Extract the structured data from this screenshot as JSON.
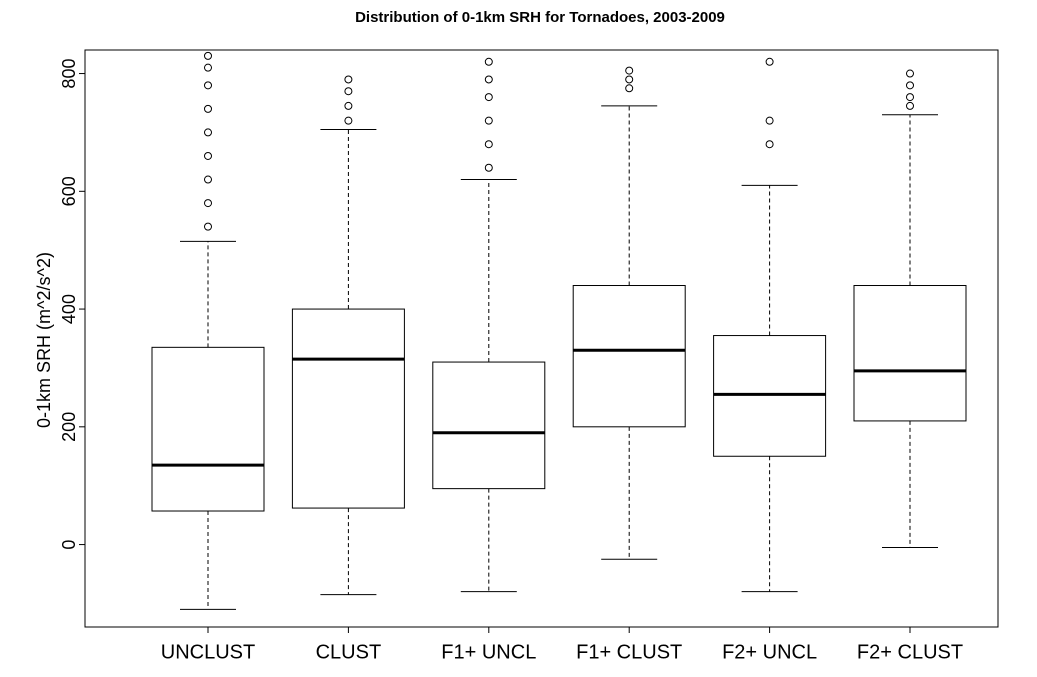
{
  "chart_data": {
    "type": "box",
    "title": "Distribution of 0-1km SRH for Tornadoes, 2003-2009",
    "y_label": "0-1km SRH (m^2/s^2)",
    "categories": [
      "UNCLUST",
      "CLUST",
      "F1+ UNCL",
      "F1+ CLUST",
      "F2+ UNCL",
      "F2+ CLUST"
    ],
    "boxes": [
      {
        "min": -110,
        "q1": 57,
        "median": 135,
        "q3": 335,
        "max": 515,
        "outliers": [
          540,
          580,
          620,
          660,
          700,
          740,
          780,
          810,
          830
        ]
      },
      {
        "min": -85,
        "q1": 62,
        "median": 315,
        "q3": 400,
        "max": 705,
        "outliers": [
          720,
          745,
          770,
          790
        ]
      },
      {
        "min": -80,
        "q1": 95,
        "median": 190,
        "q3": 310,
        "max": 620,
        "outliers": [
          640,
          680,
          720,
          760,
          790,
          820
        ]
      },
      {
        "min": -25,
        "q1": 200,
        "median": 330,
        "q3": 440,
        "max": 745,
        "outliers": [
          775,
          790,
          805
        ]
      },
      {
        "min": -80,
        "q1": 150,
        "median": 255,
        "q3": 355,
        "max": 610,
        "outliers": [
          680,
          720,
          820
        ]
      },
      {
        "min": -5,
        "q1": 210,
        "median": 295,
        "q3": 440,
        "max": 730,
        "outliers": [
          745,
          760,
          780,
          800
        ]
      }
    ],
    "ylim": [
      -140,
      840
    ],
    "yticks": [
      0,
      200,
      400,
      600,
      800
    ],
    "color": "#000000",
    "fill": "#ffffff"
  }
}
